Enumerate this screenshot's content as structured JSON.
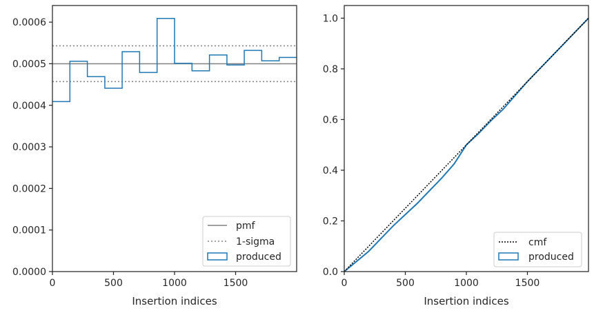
{
  "colors": {
    "produced": "#1f77b4",
    "pmf": "#808080",
    "sigma": "#808080",
    "cmf": "#000000",
    "axes": "#262626"
  },
  "chart_data": [
    {
      "type": "histogram",
      "xlabel": "Insertion indices",
      "ylabel": "",
      "xlim": [
        0,
        2000
      ],
      "ylim": [
        0,
        0.00064
      ],
      "xticks": [
        "0",
        "500",
        "1000",
        "1500"
      ],
      "yticks": [
        "0.0000",
        "0.0001",
        "0.0002",
        "0.0003",
        "0.0004",
        "0.0005",
        "0.0006"
      ],
      "pmf": 0.0005,
      "sigma_band": [
        0.000457,
        0.000543
      ],
      "bin_edges": [
        0,
        143,
        286,
        429,
        571,
        714,
        857,
        1000,
        1143,
        1286,
        1429,
        1571,
        1714,
        1857,
        2000
      ],
      "bin_values": [
        0.000409,
        0.000506,
        0.000469,
        0.000441,
        0.000529,
        0.000479,
        0.000609,
        0.000501,
        0.000483,
        0.000521,
        0.000497,
        0.000532,
        0.000507,
        0.000515
      ],
      "legend": {
        "position": "lower-right",
        "entries": [
          {
            "label": "pmf",
            "style": "line"
          },
          {
            "label": "1-sigma",
            "style": "dotted"
          },
          {
            "label": "produced",
            "style": "patch"
          }
        ]
      }
    },
    {
      "type": "line",
      "xlabel": "Insertion indices",
      "ylabel": "",
      "xlim": [
        0,
        2000
      ],
      "ylim": [
        0,
        1.05
      ],
      "xticks": [
        "0",
        "500",
        "1000",
        "1500"
      ],
      "yticks": [
        "0.0",
        "0.2",
        "0.4",
        "0.6",
        "0.8",
        "1.0"
      ],
      "series": [
        {
          "name": "cmf",
          "x": [
            0,
            2000
          ],
          "y": [
            0,
            1.0
          ]
        },
        {
          "name": "produced",
          "x": [
            0,
            100,
            200,
            300,
            400,
            500,
            600,
            700,
            800,
            900,
            1000,
            1100,
            1200,
            1300,
            1400,
            1500,
            1600,
            1700,
            1800,
            1900,
            2000
          ],
          "y": [
            0,
            0.04,
            0.08,
            0.13,
            0.18,
            0.225,
            0.27,
            0.32,
            0.37,
            0.425,
            0.5,
            0.545,
            0.595,
            0.64,
            0.695,
            0.75,
            0.8,
            0.85,
            0.9,
            0.95,
            1.0
          ]
        }
      ],
      "legend": {
        "position": "lower-right",
        "entries": [
          {
            "label": "cmf",
            "style": "dotted"
          },
          {
            "label": "produced",
            "style": "patch"
          }
        ]
      }
    }
  ]
}
